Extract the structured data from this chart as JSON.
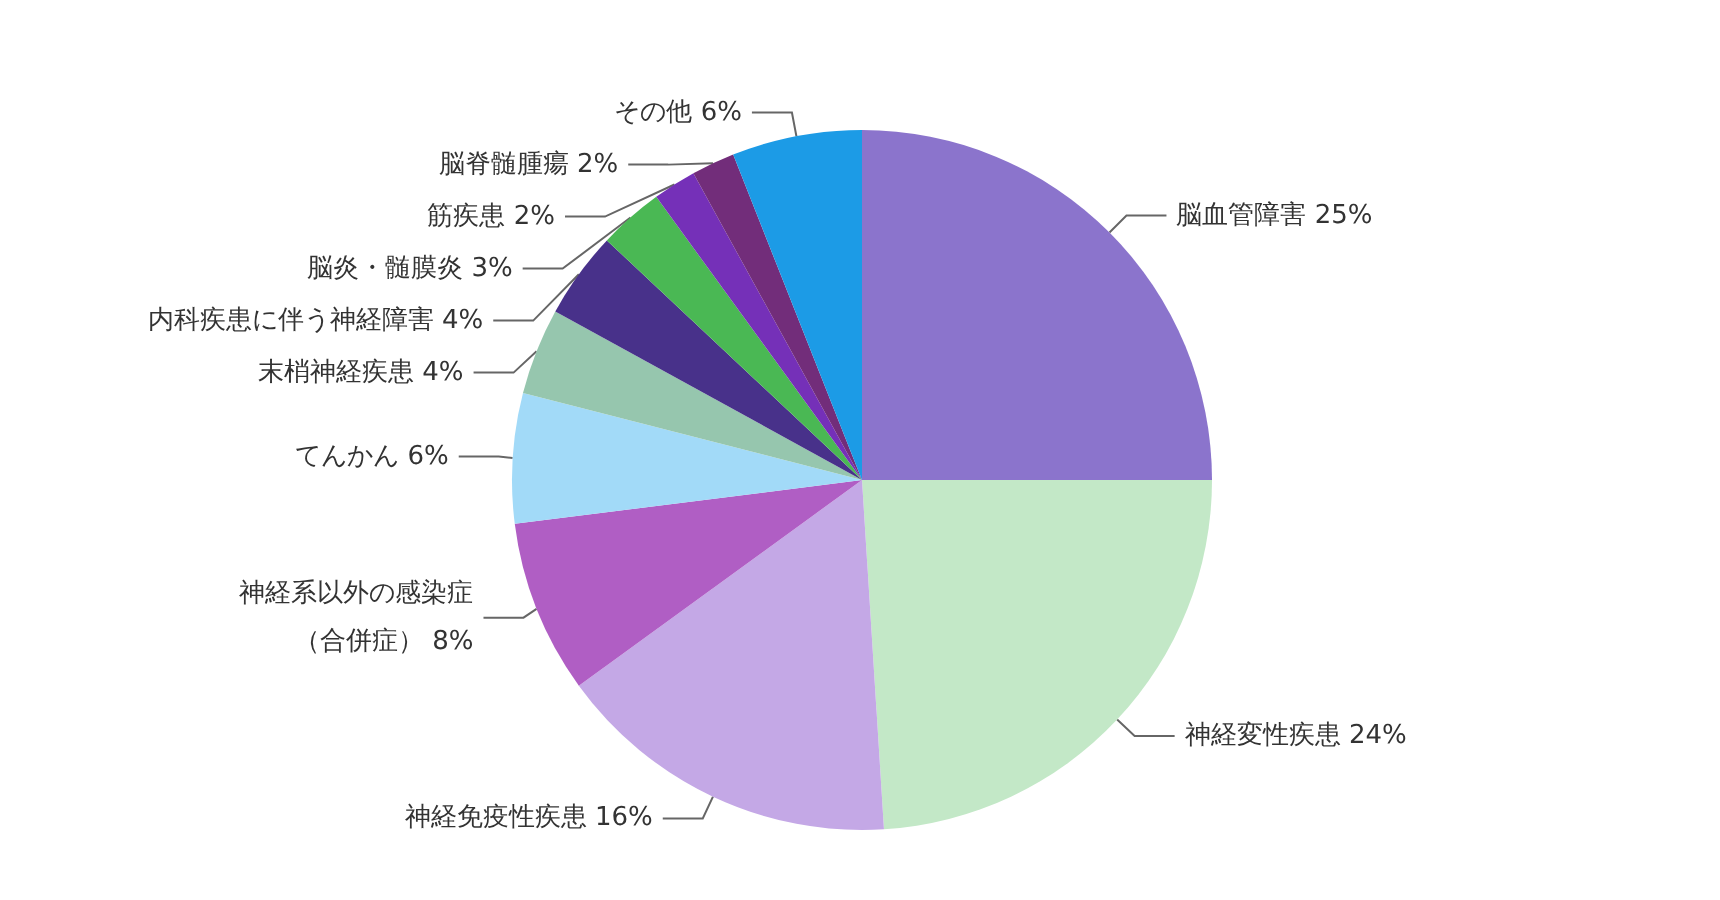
{
  "chart_data": {
    "type": "pie",
    "categories": [
      "脳血管障害",
      "神経変性疾患",
      "神経免疫性疾患",
      "神経系以外の感染症（合併症）",
      "てんかん",
      "末梢神経疾患",
      "内科疾患に伴う神経障害",
      "脳炎・髄膜炎",
      "筋疾患",
      "脳脊髄腫瘍",
      "その他"
    ],
    "values": [
      25,
      24,
      16,
      8,
      6,
      4,
      4,
      3,
      2,
      2,
      6
    ],
    "value_labels": [
      "25%",
      "24%",
      "16%",
      "8%",
      "6%",
      "4%",
      "4%",
      "3%",
      "2%",
      "2%",
      "6%"
    ],
    "colors": [
      "#8b74cc",
      "#c3e8c7",
      "#c4a8e6",
      "#b05ec4",
      "#a2daf8",
      "#96c6ae",
      "#48318a",
      "#4ab854",
      "#7530b8",
      "#722d7a",
      "#1c9be6"
    ],
    "legend": false
  }
}
